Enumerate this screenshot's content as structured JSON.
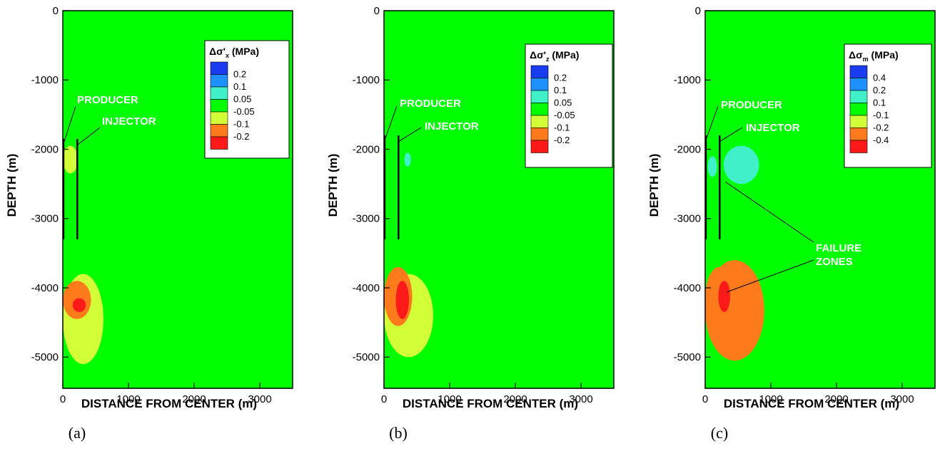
{
  "chart_data": [
    {
      "type": "heatmap",
      "panel_label": "(a)",
      "xlabel": "DISTANCE FROM CENTER (m)",
      "ylabel": "DEPTH (m)",
      "xlim": [
        0,
        3500
      ],
      "ylim": [
        -5450,
        0
      ],
      "xticks": [
        "0",
        "1000",
        "2000",
        "3000"
      ],
      "yticks": [
        "0",
        "-1000",
        "-2000",
        "-3000",
        "-4000",
        "-5000"
      ],
      "legend": {
        "title_main": "Δσ'",
        "title_sub": "x",
        "title_unit": " (MPa)",
        "placement": "top-right",
        "levels": [
          "0.2",
          "0.1",
          "0.05",
          "-0.05",
          "-0.1",
          "-0.2"
        ]
      },
      "annotations": [
        "PRODUCER",
        "INJECTOR"
      ],
      "wells": [
        {
          "name": "PRODUCER",
          "x": 10,
          "depth_top": -1850,
          "depth_bottom": -3300
        },
        {
          "name": "INJECTOR",
          "x": 220,
          "depth_top": -1850,
          "depth_bottom": -3300
        }
      ],
      "zones": [
        {
          "value_range": "-0.1 to -0.05",
          "x": [
            0,
            230
          ],
          "depth": [
            -1950,
            -2350
          ]
        },
        {
          "value_range": "-0.1 to -0.05",
          "x": [
            0,
            620
          ],
          "depth": [
            -3800,
            -5100
          ]
        },
        {
          "value_range": "-0.2 to -0.1",
          "x": [
            0,
            430
          ],
          "depth": [
            -3900,
            -4450
          ]
        },
        {
          "value_range": "< -0.2",
          "x": [
            150,
            350
          ],
          "depth": [
            -4150,
            -4350
          ]
        }
      ]
    },
    {
      "type": "heatmap",
      "panel_label": "(b)",
      "xlabel": "DISTANCE FROM CENTER (m)",
      "ylabel": "DEPTH (m)",
      "xlim": [
        0,
        3500
      ],
      "ylim": [
        -5450,
        0
      ],
      "xticks": [
        "0",
        "1000",
        "2000",
        "3000"
      ],
      "yticks": [
        "0",
        "-1000",
        "-2000",
        "-3000",
        "-4000",
        "-5000"
      ],
      "legend": {
        "title_main": "Δσ'",
        "title_sub": "z",
        "title_unit": " (MPa)",
        "placement": "top-right",
        "levels": [
          "0.2",
          "0.1",
          "0.05",
          "-0.05",
          "-0.1",
          "-0.2"
        ]
      },
      "annotations": [
        "PRODUCER",
        "INJECTOR"
      ],
      "wells": [
        {
          "name": "PRODUCER",
          "x": 10,
          "depth_top": -1800,
          "depth_bottom": -3300
        },
        {
          "name": "INJECTOR",
          "x": 220,
          "depth_top": -1800,
          "depth_bottom": -3300
        }
      ],
      "zones": [
        {
          "value_range": "0.05 to 0.1",
          "x": [
            310,
            410
          ],
          "depth": [
            -2050,
            -2250
          ]
        },
        {
          "value_range": "-0.1 to -0.05",
          "x": [
            0,
            750
          ],
          "depth": [
            -3800,
            -5000
          ]
        },
        {
          "value_range": "-0.2 to -0.1",
          "x": [
            0,
            430
          ],
          "depth": [
            -3700,
            -4550
          ]
        },
        {
          "value_range": "< -0.2",
          "x": [
            180,
            380
          ],
          "depth": [
            -3900,
            -4450
          ]
        }
      ]
    },
    {
      "type": "heatmap",
      "panel_label": "(c)",
      "xlabel": "DISTANCE FROM CENTER (m)",
      "ylabel": "DEPTH (m)",
      "xlim": [
        0,
        3500
      ],
      "ylim": [
        -5450,
        0
      ],
      "xticks": [
        "0",
        "1000",
        "2000",
        "3000"
      ],
      "yticks": [
        "0",
        "-1000",
        "-2000",
        "-3000",
        "-4000",
        "-5000"
      ],
      "legend": {
        "title_main": "Δσ",
        "title_sub": "m",
        "title_unit": " (MPa)",
        "placement": "top-right",
        "levels": [
          "0.4",
          "0.2",
          "0.1",
          "-0.1",
          "-0.2",
          "-0.4"
        ]
      },
      "annotations": [
        "PRODUCER",
        "INJECTOR",
        "FAILURE",
        "ZONES"
      ],
      "wells": [
        {
          "name": "PRODUCER",
          "x": 10,
          "depth_top": -1800,
          "depth_bottom": -3300
        },
        {
          "name": "INJECTOR",
          "x": 220,
          "depth_top": -1800,
          "depth_bottom": -3300
        }
      ],
      "zones": [
        {
          "value_range": "0.1 to 0.2",
          "x": [
            280,
            820
          ],
          "depth": [
            -1950,
            -2500
          ]
        },
        {
          "value_range": "0.1 to 0.2",
          "x": [
            40,
            180
          ],
          "depth": [
            -2100,
            -2400
          ]
        },
        {
          "value_range": "-0.2 to -0.1",
          "x": [
            0,
            900
          ],
          "depth": [
            -3600,
            -5050
          ]
        },
        {
          "value_range": "-0.4 to -0.2",
          "x": [
            0,
            430
          ],
          "depth": [
            -3700,
            -4600
          ]
        },
        {
          "value_range": "< -0.4",
          "x": [
            200,
            380
          ],
          "depth": [
            -3900,
            -4350
          ]
        }
      ]
    }
  ],
  "palette": {
    "background": "#00ff00",
    "levels_colors": [
      "#1a3cf0",
      "#1e90ff",
      "#3ff0c8",
      "#00ff00",
      "#d2ff38",
      "#ff7a1a",
      "#ff1a1a"
    ],
    "well_color": "#000000"
  }
}
